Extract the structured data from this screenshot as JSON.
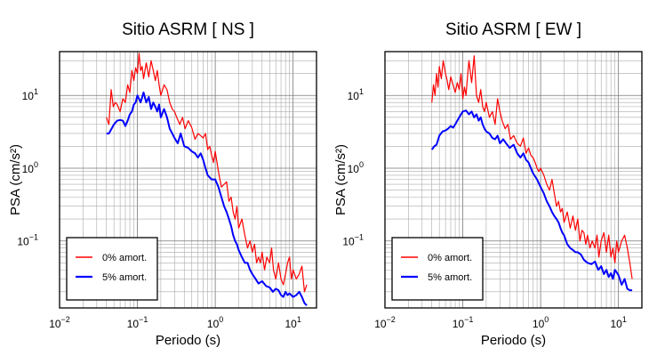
{
  "chart_data": [
    {
      "type": "line",
      "title": "Sitio ASRM [ NS ]",
      "xlabel": "Periodo (s)",
      "ylabel": "PSA (cm/s²)",
      "xscale": "log",
      "yscale": "log",
      "xlim": [
        0.01,
        20
      ],
      "ylim": [
        0.012,
        40
      ],
      "grid": true,
      "legend_position": "bottom-left",
      "xticks": [
        {
          "value": 0.01,
          "base": "10",
          "exp": "−2"
        },
        {
          "value": 0.1,
          "base": "10",
          "exp": "−1"
        },
        {
          "value": 1,
          "base": "10",
          "exp": "0"
        },
        {
          "value": 10,
          "base": "10",
          "exp": "1"
        }
      ],
      "yticks": [
        {
          "value": 0.1,
          "base": "10",
          "exp": "−1"
        },
        {
          "value": 1,
          "base": "10",
          "exp": "0"
        },
        {
          "value": 10,
          "base": "10",
          "exp": "1"
        }
      ],
      "series": [
        {
          "name": "0% amort.",
          "color": "#ff0000",
          "x": [
            0.04,
            0.043,
            0.046,
            0.049,
            0.052,
            0.055,
            0.06,
            0.065,
            0.07,
            0.075,
            0.08,
            0.085,
            0.09,
            0.095,
            0.1,
            0.105,
            0.11,
            0.115,
            0.12,
            0.13,
            0.14,
            0.15,
            0.16,
            0.17,
            0.18,
            0.19,
            0.2,
            0.22,
            0.24,
            0.26,
            0.28,
            0.3,
            0.32,
            0.35,
            0.38,
            0.41,
            0.45,
            0.5,
            0.55,
            0.6,
            0.65,
            0.7,
            0.75,
            0.8,
            0.85,
            0.9,
            0.95,
            1.0,
            1.1,
            1.2,
            1.3,
            1.4,
            1.5,
            1.6,
            1.7,
            1.8,
            1.9,
            2.0,
            2.2,
            2.4,
            2.6,
            2.8,
            3.0,
            3.2,
            3.4,
            3.6,
            3.8,
            4.0,
            4.3,
            4.6,
            5.0,
            5.3,
            5.6,
            6.0,
            6.5,
            7.0,
            7.5,
            8.0,
            8.5,
            9.0,
            9.5,
            10.0,
            11.0,
            12.0,
            13.0,
            14.0,
            15.0
          ],
          "values": [
            5.0,
            4.0,
            12.0,
            7.0,
            8.0,
            7.5,
            6.0,
            9.0,
            8.0,
            14.0,
            11.0,
            22.0,
            16.0,
            24.0,
            20.0,
            38.0,
            22.0,
            25.0,
            17.0,
            28.0,
            18.0,
            30.0,
            22.0,
            16.0,
            22.0,
            14.0,
            10.0,
            14.0,
            12.0,
            8.0,
            6.5,
            6.0,
            5.0,
            4.0,
            5.0,
            3.5,
            4.5,
            3.6,
            2.5,
            3.0,
            2.8,
            2.6,
            3.0,
            1.8,
            2.0,
            1.5,
            1.2,
            1.7,
            0.9,
            0.55,
            0.6,
            0.65,
            0.35,
            0.4,
            0.25,
            0.2,
            0.3,
            0.15,
            0.2,
            0.12,
            0.08,
            0.1,
            0.07,
            0.09,
            0.05,
            0.06,
            0.05,
            0.07,
            0.04,
            0.06,
            0.05,
            0.08,
            0.04,
            0.03,
            0.05,
            0.03,
            0.025,
            0.035,
            0.05,
            0.06,
            0.03,
            0.04,
            0.03,
            0.035,
            0.045,
            0.02,
            0.025
          ]
        },
        {
          "name": "5% amort.",
          "color": "#0000ff",
          "x": [
            0.04,
            0.043,
            0.046,
            0.05,
            0.055,
            0.06,
            0.065,
            0.07,
            0.075,
            0.08,
            0.085,
            0.09,
            0.095,
            0.1,
            0.11,
            0.12,
            0.13,
            0.14,
            0.15,
            0.16,
            0.17,
            0.18,
            0.19,
            0.2,
            0.22,
            0.24,
            0.26,
            0.28,
            0.3,
            0.33,
            0.36,
            0.4,
            0.45,
            0.5,
            0.55,
            0.6,
            0.65,
            0.7,
            0.75,
            0.8,
            0.9,
            1.0,
            1.1,
            1.2,
            1.3,
            1.4,
            1.5,
            1.6,
            1.7,
            1.8,
            1.9,
            2.0,
            2.2,
            2.4,
            2.6,
            2.8,
            3.0,
            3.3,
            3.6,
            4.0,
            4.5,
            5.0,
            5.5,
            6.0,
            6.5,
            7.0,
            7.5,
            8.0,
            8.5,
            9.0,
            10.0,
            11.0,
            12.0,
            13.0,
            14.0,
            15.0
          ],
          "values": [
            3.0,
            3.0,
            3.4,
            4.0,
            4.5,
            4.6,
            4.5,
            3.8,
            4.5,
            5.5,
            6.0,
            7.5,
            8.0,
            10.0,
            8.0,
            11.0,
            8.0,
            9.5,
            6.5,
            8.0,
            7.0,
            6.0,
            7.5,
            5.0,
            6.5,
            5.0,
            3.5,
            3.0,
            2.6,
            2.2,
            3.0,
            2.0,
            1.9,
            1.7,
            1.6,
            1.4,
            1.6,
            1.3,
            1.0,
            0.8,
            0.7,
            0.7,
            0.55,
            0.4,
            0.3,
            0.25,
            0.2,
            0.16,
            0.12,
            0.1,
            0.09,
            0.075,
            0.06,
            0.05,
            0.05,
            0.04,
            0.035,
            0.03,
            0.026,
            0.028,
            0.024,
            0.023,
            0.02,
            0.022,
            0.021,
            0.018,
            0.017,
            0.02,
            0.018,
            0.019,
            0.017,
            0.018,
            0.02,
            0.017,
            0.014,
            0.013
          ]
        }
      ]
    },
    {
      "type": "line",
      "title": "Sitio ASRM [ EW ]",
      "xlabel": "Periodo (s)",
      "ylabel": "PSA (cm/s²)",
      "xscale": "log",
      "yscale": "log",
      "xlim": [
        0.01,
        20
      ],
      "ylim": [
        0.012,
        40
      ],
      "grid": true,
      "legend_position": "bottom-left",
      "xticks": [
        {
          "value": 0.01,
          "base": "10",
          "exp": "−2"
        },
        {
          "value": 0.1,
          "base": "10",
          "exp": "−1"
        },
        {
          "value": 1,
          "base": "10",
          "exp": "0"
        },
        {
          "value": 10,
          "base": "10",
          "exp": "1"
        }
      ],
      "yticks": [
        {
          "value": 0.1,
          "base": "10",
          "exp": "−1"
        },
        {
          "value": 1,
          "base": "10",
          "exp": "0"
        },
        {
          "value": 10,
          "base": "10",
          "exp": "1"
        }
      ],
      "series": [
        {
          "name": "0% amort.",
          "color": "#ff0000",
          "x": [
            0.04,
            0.042,
            0.044,
            0.046,
            0.048,
            0.05,
            0.053,
            0.056,
            0.06,
            0.063,
            0.066,
            0.07,
            0.075,
            0.08,
            0.085,
            0.09,
            0.095,
            0.1,
            0.105,
            0.11,
            0.115,
            0.12,
            0.13,
            0.14,
            0.15,
            0.16,
            0.17,
            0.18,
            0.19,
            0.2,
            0.22,
            0.24,
            0.26,
            0.28,
            0.3,
            0.32,
            0.35,
            0.38,
            0.41,
            0.45,
            0.5,
            0.55,
            0.6,
            0.65,
            0.7,
            0.75,
            0.8,
            0.85,
            0.9,
            0.95,
            1.0,
            1.1,
            1.2,
            1.3,
            1.4,
            1.5,
            1.6,
            1.7,
            1.8,
            1.9,
            2.0,
            2.2,
            2.4,
            2.6,
            2.8,
            3.0,
            3.2,
            3.4,
            3.6,
            3.8,
            4.0,
            4.3,
            4.6,
            5.0,
            5.3,
            5.6,
            6.0,
            6.5,
            7.0,
            7.5,
            8.0,
            8.5,
            9.0,
            9.5,
            10.0,
            11.0,
            12.0,
            13.0,
            14.0,
            15.0
          ],
          "values": [
            8.0,
            14.0,
            10.0,
            20.0,
            13.0,
            25.0,
            17.0,
            30.0,
            20.0,
            16.0,
            12.0,
            18.0,
            14.0,
            11.0,
            15.0,
            12.0,
            20.0,
            9.0,
            13.0,
            10.0,
            18.0,
            30.0,
            15.0,
            35.0,
            10.0,
            8.0,
            12.0,
            7.0,
            6.0,
            8.0,
            5.0,
            6.0,
            4.0,
            9.0,
            6.0,
            4.5,
            3.5,
            4.0,
            2.5,
            2.8,
            2.2,
            2.0,
            2.6,
            1.6,
            1.9,
            1.5,
            1.4,
            1.2,
            1.0,
            0.9,
            1.0,
            0.8,
            0.6,
            0.5,
            0.7,
            0.45,
            0.3,
            0.35,
            0.25,
            0.28,
            0.18,
            0.25,
            0.15,
            0.22,
            0.14,
            0.2,
            0.1,
            0.14,
            0.13,
            0.09,
            0.12,
            0.08,
            0.1,
            0.08,
            0.12,
            0.06,
            0.1,
            0.13,
            0.07,
            0.12,
            0.06,
            0.08,
            0.05,
            0.1,
            0.07,
            0.1,
            0.12,
            0.08,
            0.05,
            0.03
          ]
        },
        {
          "name": "5% amort.",
          "color": "#0000ff",
          "x": [
            0.04,
            0.043,
            0.046,
            0.05,
            0.055,
            0.06,
            0.065,
            0.07,
            0.075,
            0.08,
            0.085,
            0.09,
            0.095,
            0.1,
            0.11,
            0.12,
            0.13,
            0.14,
            0.15,
            0.16,
            0.17,
            0.18,
            0.19,
            0.2,
            0.22,
            0.24,
            0.26,
            0.28,
            0.3,
            0.33,
            0.36,
            0.4,
            0.45,
            0.5,
            0.55,
            0.6,
            0.65,
            0.7,
            0.75,
            0.8,
            0.9,
            1.0,
            1.1,
            1.2,
            1.3,
            1.4,
            1.5,
            1.6,
            1.7,
            1.8,
            1.9,
            2.0,
            2.2,
            2.4,
            2.6,
            2.8,
            3.0,
            3.3,
            3.6,
            4.0,
            4.5,
            5.0,
            5.5,
            6.0,
            6.5,
            7.0,
            7.5,
            8.0,
            8.5,
            9.0,
            10.0,
            11.0,
            12.0,
            13.0,
            14.0,
            15.0
          ],
          "values": [
            1.8,
            2.0,
            2.1,
            2.8,
            3.2,
            3.3,
            3.5,
            3.8,
            3.6,
            4.0,
            4.5,
            5.0,
            5.5,
            6.0,
            6.2,
            5.5,
            6.0,
            5.0,
            5.5,
            4.5,
            5.0,
            4.0,
            3.5,
            3.2,
            3.0,
            2.6,
            2.5,
            2.8,
            2.2,
            2.5,
            2.2,
            1.9,
            2.1,
            1.6,
            1.4,
            1.6,
            1.3,
            1.2,
            1.0,
            0.85,
            0.7,
            0.55,
            0.45,
            0.35,
            0.3,
            0.25,
            0.22,
            0.2,
            0.18,
            0.15,
            0.13,
            0.12,
            0.09,
            0.08,
            0.075,
            0.07,
            0.07,
            0.065,
            0.055,
            0.05,
            0.048,
            0.052,
            0.04,
            0.045,
            0.035,
            0.04,
            0.032,
            0.036,
            0.03,
            0.04,
            0.034,
            0.025,
            0.03,
            0.022,
            0.021,
            0.021
          ]
        }
      ]
    }
  ]
}
